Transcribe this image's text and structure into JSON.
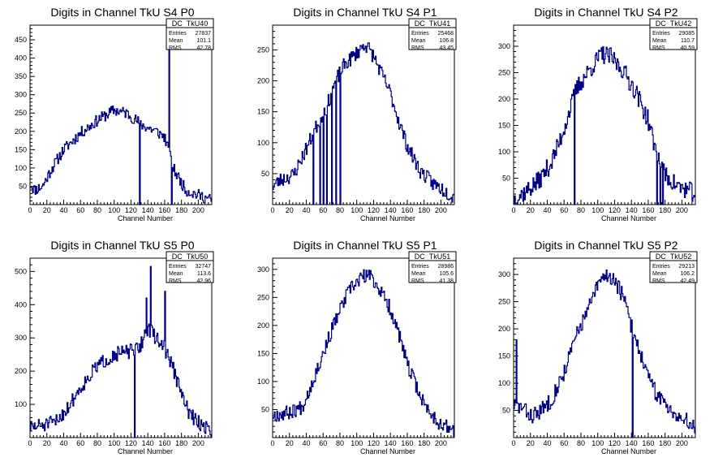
{
  "chart_data": [
    {
      "type": "histogram",
      "title": "Digits in Channel TkU S4 P0",
      "xlabel": "Channel Number",
      "ylabel": "",
      "xlim": [
        0,
        216
      ],
      "ylim": [
        0,
        490
      ],
      "xticks": [
        0,
        20,
        40,
        60,
        80,
        100,
        120,
        140,
        160,
        180,
        200
      ],
      "yticks": [
        50,
        100,
        150,
        200,
        250,
        300,
        350,
        400,
        450
      ],
      "stats": {
        "name": "DC_TkU40",
        "rows": [
          [
            "Entries",
            "27837"
          ],
          [
            "Mean",
            "101.1"
          ],
          [
            "RMS",
            "42.78"
          ]
        ]
      },
      "spikes": [
        [
          130,
          0
        ],
        [
          165,
          460
        ],
        [
          168,
          0
        ]
      ],
      "profile": [
        [
          0,
          60
        ],
        [
          5,
          40
        ],
        [
          15,
          50
        ],
        [
          25,
          95
        ],
        [
          40,
          150
        ],
        [
          60,
          195
        ],
        [
          80,
          230
        ],
        [
          100,
          258
        ],
        [
          115,
          250
        ],
        [
          125,
          232
        ],
        [
          135,
          215
        ],
        [
          150,
          200
        ],
        [
          160,
          185
        ],
        [
          170,
          100
        ],
        [
          175,
          80
        ],
        [
          185,
          40
        ],
        [
          195,
          30
        ],
        [
          205,
          22
        ],
        [
          216,
          12
        ]
      ],
      "noise": 16,
      "seed": 11
    },
    {
      "type": "histogram",
      "title": "Digits in Channel TkU S4 P1",
      "xlabel": "Channel Number",
      "ylabel": "",
      "xlim": [
        0,
        216
      ],
      "ylim": [
        0,
        290
      ],
      "xticks": [
        0,
        20,
        40,
        60,
        80,
        100,
        120,
        140,
        160,
        180,
        200
      ],
      "yticks": [
        50,
        100,
        150,
        200,
        250
      ],
      "stats": {
        "name": "DC_TkU41",
        "rows": [
          [
            "Entries",
            "25468"
          ],
          [
            "Mean",
            "106.8"
          ],
          [
            "RMS",
            "43.45"
          ]
        ]
      },
      "spikes": [
        [
          48,
          0
        ],
        [
          56,
          0
        ],
        [
          60,
          0
        ],
        [
          64,
          0
        ],
        [
          70,
          0
        ],
        [
          75,
          0
        ],
        [
          80,
          0
        ]
      ],
      "profile": [
        [
          0,
          30
        ],
        [
          10,
          40
        ],
        [
          25,
          48
        ],
        [
          40,
          90
        ],
        [
          55,
          135
        ],
        [
          65,
          160
        ],
        [
          75,
          200
        ],
        [
          85,
          225
        ],
        [
          100,
          245
        ],
        [
          110,
          260
        ],
        [
          120,
          240
        ],
        [
          130,
          210
        ],
        [
          140,
          180
        ],
        [
          150,
          135
        ],
        [
          160,
          95
        ],
        [
          175,
          55
        ],
        [
          190,
          35
        ],
        [
          205,
          22
        ],
        [
          216,
          12
        ]
      ],
      "noise": 12,
      "seed": 23
    },
    {
      "type": "histogram",
      "title": "Digits in Channel TkU S4 P2",
      "xlabel": "Channel Number",
      "ylabel": "",
      "xlim": [
        0,
        216
      ],
      "ylim": [
        0,
        340
      ],
      "xticks": [
        0,
        20,
        40,
        60,
        80,
        100,
        120,
        140,
        160,
        180,
        200
      ],
      "yticks": [
        50,
        100,
        150,
        200,
        250,
        300
      ],
      "stats": {
        "name": "DC_TkU42",
        "rows": [
          [
            "Entries",
            "29085"
          ],
          [
            "Mean",
            "110.7"
          ],
          [
            "RMS",
            "40.59"
          ]
        ]
      },
      "spikes": [
        [
          72,
          0
        ],
        [
          170,
          0
        ],
        [
          174,
          0
        ],
        [
          177,
          0
        ]
      ],
      "profile": [
        [
          0,
          10
        ],
        [
          15,
          25
        ],
        [
          30,
          45
        ],
        [
          45,
          80
        ],
        [
          55,
          120
        ],
        [
          65,
          170
        ],
        [
          75,
          220
        ],
        [
          90,
          255
        ],
        [
          105,
          285
        ],
        [
          115,
          280
        ],
        [
          130,
          255
        ],
        [
          145,
          215
        ],
        [
          160,
          160
        ],
        [
          170,
          95
        ],
        [
          180,
          55
        ],
        [
          195,
          35
        ],
        [
          210,
          25
        ],
        [
          216,
          20
        ]
      ],
      "noise": 18,
      "seed": 37
    },
    {
      "type": "histogram",
      "title": "Digits in Channel TkU S5 P0",
      "xlabel": "Channel Number",
      "ylabel": "",
      "xlim": [
        0,
        216
      ],
      "ylim": [
        0,
        540
      ],
      "xticks": [
        0,
        20,
        40,
        60,
        80,
        100,
        120,
        140,
        160,
        180,
        200
      ],
      "yticks": [
        100,
        200,
        300,
        400,
        500
      ],
      "stats": {
        "name": "DC_TkU50",
        "rows": [
          [
            "Entries",
            "32747"
          ],
          [
            "Mean",
            "113.6"
          ],
          [
            "RMS",
            "42.96"
          ]
        ]
      },
      "spikes": [
        [
          124,
          0
        ],
        [
          143,
          515
        ],
        [
          138,
          420
        ],
        [
          160,
          440
        ]
      ],
      "profile": [
        [
          0,
          30
        ],
        [
          10,
          35
        ],
        [
          30,
          45
        ],
        [
          45,
          90
        ],
        [
          60,
          150
        ],
        [
          80,
          215
        ],
        [
          100,
          250
        ],
        [
          120,
          260
        ],
        [
          130,
          270
        ],
        [
          140,
          330
        ],
        [
          150,
          300
        ],
        [
          160,
          270
        ],
        [
          170,
          210
        ],
        [
          180,
          130
        ],
        [
          190,
          70
        ],
        [
          200,
          45
        ],
        [
          210,
          30
        ],
        [
          216,
          20
        ]
      ],
      "noise": 22,
      "seed": 51
    },
    {
      "type": "histogram",
      "title": "Digits in Channel TkU S5 P1",
      "xlabel": "Channel Number",
      "ylabel": "",
      "xlim": [
        0,
        216
      ],
      "ylim": [
        0,
        320
      ],
      "xticks": [
        0,
        20,
        40,
        60,
        80,
        100,
        120,
        140,
        160,
        180,
        200
      ],
      "yticks": [
        50,
        100,
        150,
        200,
        250,
        300
      ],
      "stats": {
        "name": "DC_TkU51",
        "rows": [
          [
            "Entries",
            "28986"
          ],
          [
            "Mean",
            "105.6"
          ],
          [
            "RMS",
            "41.38"
          ]
        ]
      },
      "spikes": [],
      "profile": [
        [
          0,
          40
        ],
        [
          20,
          45
        ],
        [
          35,
          55
        ],
        [
          45,
          90
        ],
        [
          60,
          150
        ],
        [
          75,
          210
        ],
        [
          90,
          260
        ],
        [
          105,
          285
        ],
        [
          115,
          290
        ],
        [
          125,
          270
        ],
        [
          140,
          230
        ],
        [
          150,
          185
        ],
        [
          160,
          130
        ],
        [
          170,
          95
        ],
        [
          180,
          60
        ],
        [
          195,
          30
        ],
        [
          205,
          20
        ],
        [
          216,
          12
        ]
      ],
      "noise": 13,
      "seed": 67
    },
    {
      "type": "histogram",
      "title": "Digits in Channel TkU S5 P2",
      "xlabel": "Channel Number",
      "ylabel": "",
      "xlim": [
        0,
        216
      ],
      "ylim": [
        0,
        330
      ],
      "xticks": [
        0,
        20,
        40,
        60,
        80,
        100,
        120,
        140,
        160,
        180,
        200
      ],
      "yticks": [
        50,
        100,
        150,
        200,
        250,
        300
      ],
      "stats": {
        "name": "DC_TkU52",
        "rows": [
          [
            "Entries",
            "29213"
          ],
          [
            "Mean",
            "106.2"
          ],
          [
            "RMS",
            "42.49"
          ]
        ]
      },
      "spikes": [
        [
          3,
          180
        ],
        [
          141,
          0
        ]
      ],
      "profile": [
        [
          0,
          60
        ],
        [
          10,
          55
        ],
        [
          20,
          40
        ],
        [
          30,
          45
        ],
        [
          45,
          70
        ],
        [
          60,
          120
        ],
        [
          75,
          190
        ],
        [
          90,
          240
        ],
        [
          100,
          280
        ],
        [
          110,
          300
        ],
        [
          120,
          290
        ],
        [
          130,
          260
        ],
        [
          140,
          205
        ],
        [
          150,
          160
        ],
        [
          160,
          110
        ],
        [
          170,
          80
        ],
        [
          185,
          55
        ],
        [
          200,
          35
        ],
        [
          216,
          20
        ]
      ],
      "noise": 15,
      "seed": 83
    }
  ]
}
